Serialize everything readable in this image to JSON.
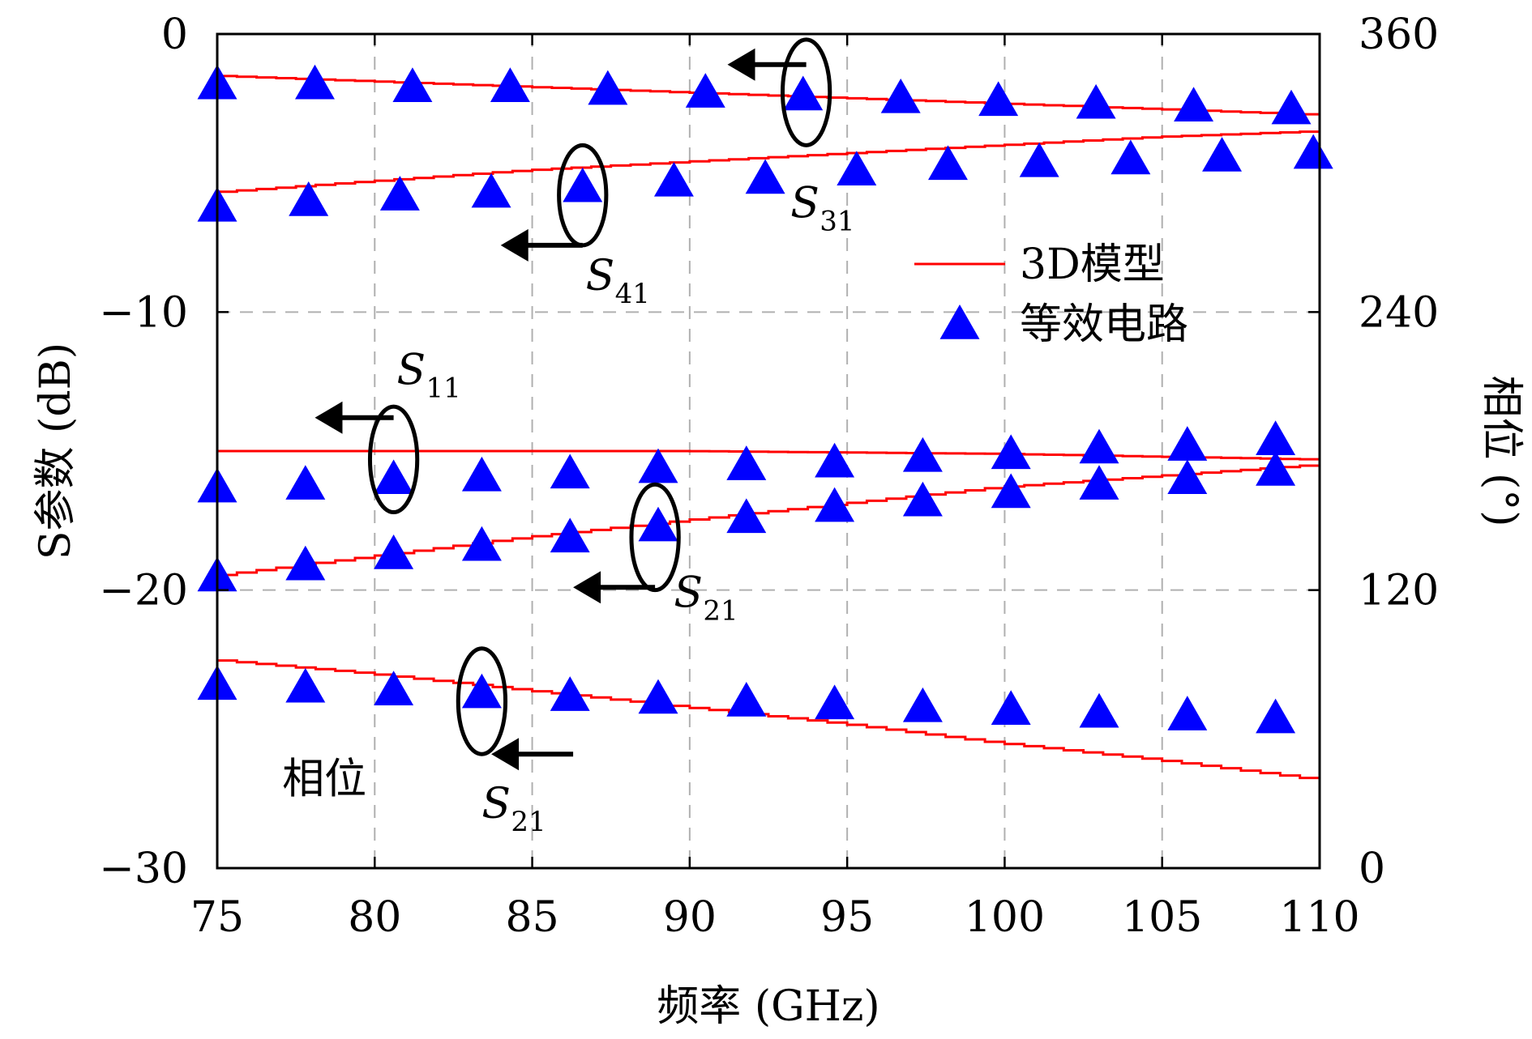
{
  "chart_data": {
    "type": "line",
    "xlabel": "频率 (GHz)",
    "ylabel_left": "S参数 (dB)",
    "ylabel_right": "相位 (°)",
    "xlim": [
      75,
      110
    ],
    "ylim_left": [
      -30,
      0
    ],
    "ylim_right": [
      0,
      360
    ],
    "x_ticks": [
      75,
      80,
      85,
      90,
      95,
      100,
      105,
      110
    ],
    "y_left_ticks": [
      0,
      -10,
      -20,
      -30
    ],
    "y_left_tick_labels": [
      "0",
      "−10",
      "−20",
      "−30"
    ],
    "y_right_ticks": [
      360,
      240,
      120,
      0
    ],
    "grid": true,
    "legend": {
      "position": "upper-right",
      "entries": [
        {
          "label": "3D模型",
          "color": "#ff0000",
          "marker": "line"
        },
        {
          "label": "等效电路",
          "color": "#0000ff",
          "marker": "triangle"
        }
      ]
    },
    "series": [
      {
        "name": "3D模型",
        "kind": "line",
        "axis": "left",
        "color": "#ff0000",
        "x": [
          75,
          80,
          85,
          90,
          95,
          100,
          105,
          110
        ],
        "y": [
          -1.5,
          -1.7,
          -1.9,
          -2.1,
          -2.3,
          -2.5,
          -2.7,
          -2.9
        ]
      },
      {
        "name": "3D模型",
        "kind": "line",
        "axis": "left",
        "color": "#ff0000",
        "x": [
          75,
          80,
          85,
          90,
          95,
          100,
          105,
          110
        ],
        "y": [
          -5.7,
          -5.3,
          -4.9,
          -4.6,
          -4.3,
          -4.0,
          -3.7,
          -3.5
        ]
      },
      {
        "name": "3D模型",
        "kind": "line",
        "axis": "left",
        "color": "#ff0000",
        "x": [
          75,
          80,
          85,
          90,
          95,
          100,
          105,
          110
        ],
        "y": [
          -15.0,
          -15.0,
          -15.0,
          -15.0,
          -15.05,
          -15.1,
          -15.2,
          -15.3
        ]
      },
      {
        "name": "3D模型",
        "kind": "line",
        "axis": "left",
        "color": "#ff0000",
        "x": [
          75,
          80,
          85,
          90,
          95,
          100,
          105,
          110
        ],
        "y": [
          -19.5,
          -18.8,
          -18.1,
          -17.5,
          -16.9,
          -16.3,
          -15.9,
          -15.5
        ]
      },
      {
        "name": "3D模型",
        "kind": "line",
        "axis": "left",
        "color": "#ff0000",
        "x": [
          75,
          80,
          85,
          90,
          95,
          100,
          105,
          110
        ],
        "y": [
          -22.5,
          -23.0,
          -23.6,
          -24.2,
          -24.8,
          -25.5,
          -26.1,
          -26.8
        ]
      },
      {
        "name": "等效电路",
        "kind": "triangle",
        "axis": "left",
        "color": "#0000ff",
        "x": [
          75,
          78.1,
          81.2,
          84.3,
          87.4,
          90.5,
          93.6,
          96.7,
          99.8,
          102.9,
          106.0,
          109.1
        ],
        "y": [
          -1.8,
          -1.8,
          -1.9,
          -1.9,
          -2.0,
          -2.1,
          -2.2,
          -2.3,
          -2.4,
          -2.5,
          -2.6,
          -2.7
        ]
      },
      {
        "name": "等效电路",
        "kind": "triangle",
        "axis": "left",
        "color": "#0000ff",
        "x": [
          75,
          77.9,
          80.8,
          83.7,
          86.6,
          89.5,
          92.4,
          95.3,
          98.2,
          101.1,
          104.0,
          106.9,
          109.8
        ],
        "y": [
          -6.2,
          -6.0,
          -5.8,
          -5.7,
          -5.5,
          -5.3,
          -5.2,
          -4.9,
          -4.7,
          -4.6,
          -4.5,
          -4.4,
          -4.3
        ]
      },
      {
        "name": "等效电路",
        "kind": "triangle",
        "axis": "left",
        "color": "#0000ff",
        "x": [
          75,
          77.8,
          80.6,
          83.4,
          86.2,
          89.0,
          91.8,
          94.6,
          97.4,
          100.2,
          103.0,
          105.8,
          108.6
        ],
        "y": [
          -16.3,
          -16.2,
          -16.0,
          -15.9,
          -15.8,
          -15.6,
          -15.5,
          -15.4,
          -15.2,
          -15.1,
          -14.9,
          -14.8,
          -14.6
        ]
      },
      {
        "name": "等效电路",
        "kind": "triangle",
        "axis": "left",
        "color": "#0000ff",
        "x": [
          75,
          77.8,
          80.6,
          83.4,
          86.2,
          89.0,
          91.8,
          94.6,
          97.4,
          100.2,
          103.0,
          105.8,
          108.6
        ],
        "y": [
          -19.5,
          -19.1,
          -18.7,
          -18.4,
          -18.1,
          -17.7,
          -17.4,
          -17.0,
          -16.8,
          -16.5,
          -16.2,
          -16.0,
          -15.7
        ]
      },
      {
        "name": "等效电路",
        "kind": "triangle",
        "axis": "left",
        "color": "#0000ff",
        "x": [
          75,
          77.8,
          80.6,
          83.4,
          86.2,
          89.0,
          91.8,
          94.6,
          97.4,
          100.2,
          103.0,
          105.8,
          108.6
        ],
        "y": [
          -23.4,
          -23.5,
          -23.6,
          -23.7,
          -23.8,
          -23.9,
          -24.0,
          -24.1,
          -24.2,
          -24.3,
          -24.4,
          -24.5,
          -24.6
        ]
      }
    ],
    "annotations": [
      {
        "sub": "31",
        "label_at": [
          93.2,
          -6.6
        ],
        "ellipse": {
          "x": 93.7,
          "y": -2.1,
          "rx": 0.75,
          "ry": 1.9
        },
        "arrow": {
          "from": [
            93.7,
            -1.1
          ],
          "to": [
            91.2,
            -1.1
          ]
        }
      },
      {
        "sub": "41",
        "label_at": [
          86.7,
          -9.2
        ],
        "ellipse": {
          "x": 86.6,
          "y": -5.8,
          "rx": 0.75,
          "ry": 1.8
        },
        "arrow": {
          "from": [
            86.6,
            -7.6
          ],
          "to": [
            84.0,
            -7.6
          ]
        }
      },
      {
        "sub": "11",
        "label_at": [
          80.7,
          -12.6
        ],
        "ellipse": {
          "x": 80.6,
          "y": -15.3,
          "rx": 0.75,
          "ry": 1.9
        },
        "arrow": {
          "from": [
            80.6,
            -13.8
          ],
          "to": [
            78.1,
            -13.8
          ]
        }
      },
      {
        "sub": "21",
        "label_at": [
          89.5,
          -20.6
        ],
        "ellipse": {
          "x": 88.9,
          "y": -18.1,
          "rx": 0.75,
          "ry": 1.9
        },
        "arrow": {
          "from": [
            88.9,
            -19.9
          ],
          "to": [
            86.3,
            -19.9
          ]
        }
      },
      {
        "sub": "21",
        "label_at": [
          83.4,
          -28.2
        ],
        "ellipse": {
          "x": 83.4,
          "y": -24.0,
          "rx": 0.75,
          "ry": 1.9
        },
        "arrow": {
          "from": [
            86.3,
            -25.9
          ],
          "to": [
            83.7,
            -25.9
          ]
        }
      }
    ],
    "phase_label": "相位",
    "s_letter": "S"
  }
}
